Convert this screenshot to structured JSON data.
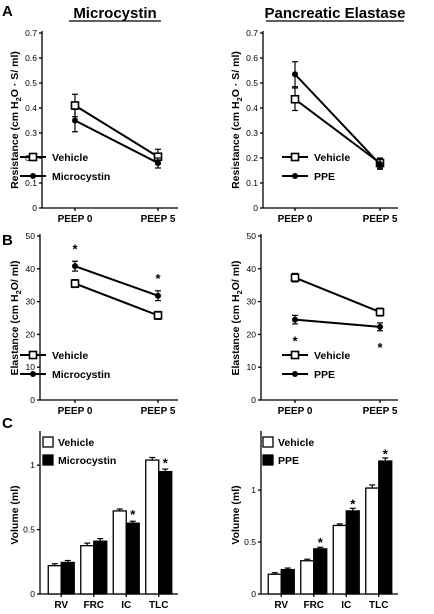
{
  "panel_labels": [
    "A",
    "B",
    "C"
  ],
  "column_titles": [
    "Microcystin",
    "Pancreatic Elastase"
  ],
  "chart_data": [
    {
      "id": "A-left",
      "type": "line",
      "ylabel_parts": [
        "Resistance (cm H",
        "2",
        "O · S/ ml)"
      ],
      "ylim": [
        0,
        0.7
      ],
      "yticks": [
        "0",
        "0.1",
        "0.2",
        "0.3",
        "0.4",
        "0.5",
        "0.6",
        "0.7"
      ],
      "categories": [
        "PEEP 0",
        "PEEP 5"
      ],
      "series": [
        {
          "name": "Vehicle",
          "marker": "square",
          "values": [
            0.41,
            0.205
          ],
          "errors": [
            0.045,
            0.03
          ]
        },
        {
          "name": "Microcystin",
          "marker": "circle",
          "values": [
            0.35,
            0.18
          ],
          "errors": [
            0.045,
            0.02
          ]
        }
      ],
      "annotations": []
    },
    {
      "id": "A-right",
      "type": "line",
      "ylabel_parts": [
        "Resistance (cm H",
        "2",
        "O · S/ ml)"
      ],
      "ylim": [
        0,
        0.7
      ],
      "yticks": [
        "0",
        "0.1",
        "0.2",
        "0.3",
        "0.4",
        "0.5",
        "0.6",
        "0.7"
      ],
      "categories": [
        "PEEP 0",
        "PEEP 5"
      ],
      "series": [
        {
          "name": "Vehicle",
          "marker": "square",
          "values": [
            0.435,
            0.18
          ],
          "errors": [
            0.045,
            0.02
          ]
        },
        {
          "name": "PPE",
          "marker": "circle",
          "values": [
            0.535,
            0.175
          ],
          "errors": [
            0.05,
            0.02
          ]
        }
      ],
      "annotations": []
    },
    {
      "id": "B-left",
      "type": "line",
      "ylabel_parts": [
        "Elastance (cm H",
        "2",
        "O/ ml)"
      ],
      "ylim": [
        0,
        50
      ],
      "yticks": [
        "0",
        "10",
        "20",
        "30",
        "40",
        "50"
      ],
      "categories": [
        "PEEP 0",
        "PEEP 5"
      ],
      "series": [
        {
          "name": "Vehicle",
          "marker": "square",
          "values": [
            35.5,
            25.8
          ],
          "errors": [
            1.2,
            1.2
          ]
        },
        {
          "name": "Microcystin",
          "marker": "circle",
          "values": [
            40.8,
            31.8
          ],
          "errors": [
            1.5,
            1.5
          ]
        }
      ],
      "annotations": [
        {
          "text": "*",
          "category": 0,
          "y": 46.5
        },
        {
          "text": "*",
          "category": 1,
          "y": 37.5
        }
      ]
    },
    {
      "id": "B-right",
      "type": "line",
      "ylabel_parts": [
        "Elastance (cm H",
        "2",
        "O/ ml)"
      ],
      "ylim": [
        0,
        50
      ],
      "yticks": [
        "0",
        "10",
        "20",
        "30",
        "40",
        "50"
      ],
      "categories": [
        "PEEP 0",
        "PEEP 5"
      ],
      "series": [
        {
          "name": "Vehicle",
          "marker": "square",
          "values": [
            37.3,
            26.8
          ],
          "errors": [
            1.3,
            1.2
          ]
        },
        {
          "name": "PPE",
          "marker": "circle",
          "values": [
            24.5,
            22.3
          ],
          "errors": [
            1.3,
            1.2
          ]
        }
      ],
      "annotations": [
        {
          "text": "*",
          "category": 0,
          "y": 18.5
        },
        {
          "text": "*",
          "category": 1,
          "y": 16.5
        }
      ]
    },
    {
      "id": "C-left",
      "type": "bar",
      "ylabel": "Volume (ml)",
      "ylim": [
        0,
        1.25
      ],
      "ytick_values": [
        0,
        0.5,
        1
      ],
      "yticks": [
        "0",
        "0.5",
        "1"
      ],
      "categories": [
        "RV",
        "FRC",
        "IC",
        "TLC"
      ],
      "series": [
        {
          "name": "Vehicle",
          "fill": "#ffffff",
          "values": [
            0.22,
            0.375,
            0.645,
            1.04
          ],
          "errors": [
            0.015,
            0.02,
            0.015,
            0.02
          ]
        },
        {
          "name": "Microcystin",
          "fill": "#000000",
          "values": [
            0.245,
            0.41,
            0.55,
            0.95
          ],
          "errors": [
            0.015,
            0.02,
            0.015,
            0.02
          ]
        }
      ],
      "annotations": [
        {
          "text": "*",
          "category": 2,
          "y": 0.63
        },
        {
          "text": "*",
          "category": 3,
          "y": 1.03
        }
      ]
    },
    {
      "id": "C-right",
      "type": "bar",
      "ylabel": "Volume (ml)",
      "ylim": [
        0,
        1.55
      ],
      "ytick_values": [
        0,
        0.5,
        1
      ],
      "yticks": [
        "0",
        "0.5",
        "1"
      ],
      "categories": [
        "RV",
        "FRC",
        "IC",
        "TLC"
      ],
      "series": [
        {
          "name": "Vehicle",
          "fill": "#ffffff",
          "values": [
            0.19,
            0.32,
            0.66,
            1.02
          ],
          "errors": [
            0.015,
            0.015,
            0.015,
            0.03
          ]
        },
        {
          "name": "PPE",
          "fill": "#000000",
          "values": [
            0.235,
            0.435,
            0.8,
            1.28
          ],
          "errors": [
            0.015,
            0.015,
            0.025,
            0.03
          ]
        }
      ],
      "annotations": [
        {
          "text": "*",
          "category": 1,
          "y": 0.51
        },
        {
          "text": "*",
          "category": 2,
          "y": 0.88
        },
        {
          "text": "*",
          "category": 3,
          "y": 1.36
        }
      ]
    }
  ]
}
